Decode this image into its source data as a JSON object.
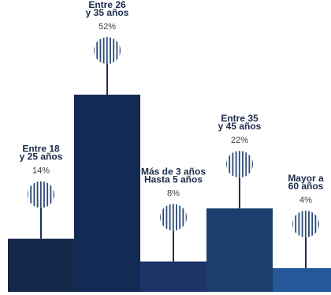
{
  "chart_data": {
    "type": "bar",
    "categories": [
      [
        "Entre 18",
        "y 25 años"
      ],
      [
        "Entre 26",
        "y 35 años"
      ],
      [
        "Más de 3 años",
        "Hasta 5 años"
      ],
      [
        "Entre 35",
        "y 45 años"
      ],
      [
        "Mayor a",
        "60 años"
      ]
    ],
    "values": [
      14,
      52,
      8,
      22,
      4
    ],
    "value_labels": [
      "14%",
      "52%",
      "8%",
      "22%",
      "4%"
    ],
    "colors": [
      "#15284a",
      "#122a54",
      "#1e3468",
      "#1a3f6c",
      "#24589a"
    ],
    "title": "",
    "xlabel": "",
    "ylabel": ""
  }
}
